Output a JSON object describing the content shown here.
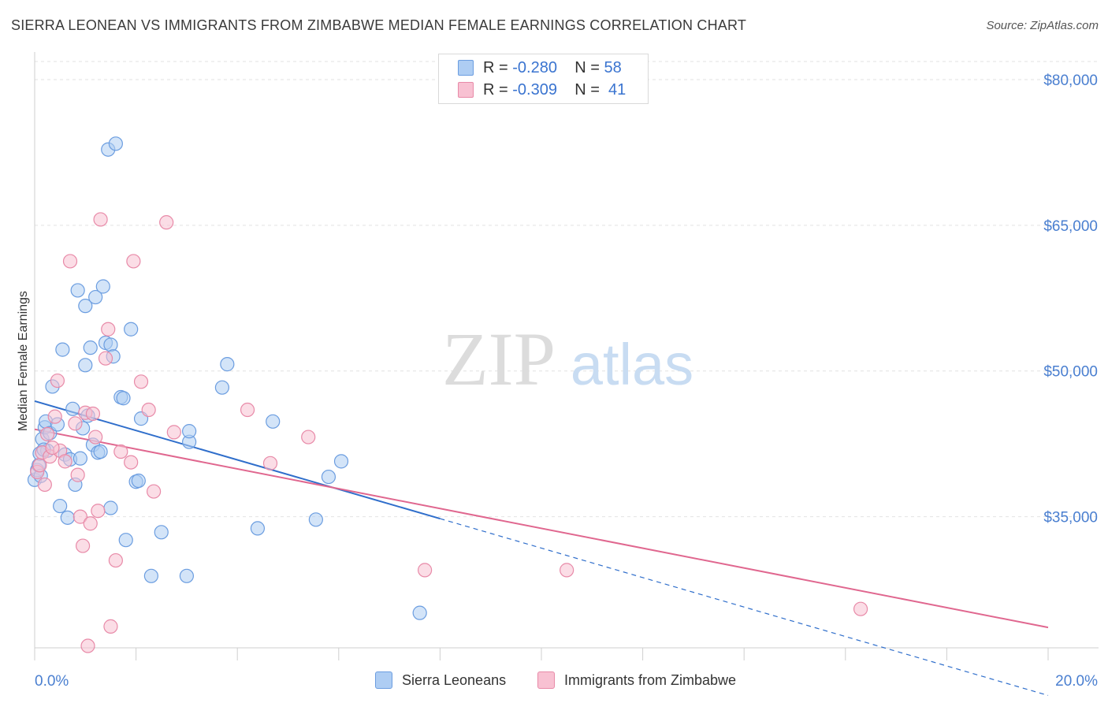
{
  "title": "SIERRA LEONEAN VS IMMIGRANTS FROM ZIMBABWE MEDIAN FEMALE EARNINGS CORRELATION CHART",
  "source": "Source: ZipAtlas.com",
  "watermark": {
    "zip": "ZIP",
    "atlas": "atlas"
  },
  "legend_top": {
    "rows": [
      {
        "r_label": "R =",
        "r_value": "-0.280",
        "n_label": "N =",
        "n_value": "58",
        "fill": "#aecdf3",
        "stroke": "#6b9de0"
      },
      {
        "r_label": "R =",
        "r_value": "-0.309",
        "n_label": "N =",
        "n_value": "41",
        "fill": "#f8c1d2",
        "stroke": "#e88aa8"
      }
    ]
  },
  "legend_bottom": [
    {
      "label": "Sierra Leoneans",
      "fill": "#aecdf3",
      "stroke": "#6b9de0"
    },
    {
      "label": "Immigrants from Zimbabwe",
      "fill": "#f8c1d2",
      "stroke": "#e88aa8"
    }
  ],
  "chart_data": {
    "type": "scatter",
    "title": "SIERRA LEONEAN VS IMMIGRANTS FROM ZIMBABWE MEDIAN FEMALE EARNINGS CORRELATION CHART",
    "xlabel": "",
    "ylabel": "Median Female Earnings",
    "xlim": [
      0,
      20
    ],
    "ylim": [
      21500,
      83000
    ],
    "x_tick_labels": [
      {
        "value": 0,
        "label": "0.0%"
      },
      {
        "value": 20,
        "label": "20.0%"
      }
    ],
    "y_tick_labels": [
      {
        "value": 80000,
        "label": "$80,000"
      },
      {
        "value": 65000,
        "label": "$65,000"
      },
      {
        "value": 50000,
        "label": "$50,000"
      },
      {
        "value": 35000,
        "label": "$35,000"
      }
    ],
    "grid": true,
    "series": [
      {
        "name": "Sierra Leoneans",
        "color": "#6b9de0",
        "fill": "#aecdf3",
        "trend": {
          "x0": 0,
          "y0": 46900,
          "x1": 8.0,
          "y1": 34800,
          "dash_to_x": 20.0,
          "dash_to_y": 16600,
          "color": "#2f6ecb"
        },
        "points": [
          [
            0.0,
            38800
          ],
          [
            0.05,
            39800
          ],
          [
            0.08,
            40300
          ],
          [
            0.1,
            41500
          ],
          [
            0.12,
            39200
          ],
          [
            0.15,
            43000
          ],
          [
            0.2,
            44200
          ],
          [
            0.22,
            44800
          ],
          [
            0.25,
            41800
          ],
          [
            0.3,
            43600
          ],
          [
            0.35,
            48400
          ],
          [
            0.45,
            44500
          ],
          [
            0.5,
            36100
          ],
          [
            0.55,
            52200
          ],
          [
            0.6,
            41400
          ],
          [
            0.65,
            34900
          ],
          [
            0.7,
            40900
          ],
          [
            0.75,
            46100
          ],
          [
            0.8,
            38300
          ],
          [
            0.85,
            58300
          ],
          [
            0.9,
            41000
          ],
          [
            0.95,
            44100
          ],
          [
            1.0,
            50600
          ],
          [
            1.0,
            56700
          ],
          [
            1.05,
            45400
          ],
          [
            1.1,
            52400
          ],
          [
            1.15,
            42400
          ],
          [
            1.2,
            57600
          ],
          [
            1.25,
            41600
          ],
          [
            1.3,
            41700
          ],
          [
            1.35,
            58700
          ],
          [
            1.4,
            52900
          ],
          [
            1.45,
            72800
          ],
          [
            1.5,
            52700
          ],
          [
            1.5,
            35900
          ],
          [
            1.55,
            51500
          ],
          [
            1.6,
            73400
          ],
          [
            1.7,
            47300
          ],
          [
            1.75,
            47200
          ],
          [
            1.8,
            32600
          ],
          [
            1.9,
            54300
          ],
          [
            2.0,
            38600
          ],
          [
            2.05,
            38700
          ],
          [
            2.1,
            45100
          ],
          [
            2.3,
            28900
          ],
          [
            2.5,
            33400
          ],
          [
            3.0,
            28900
          ],
          [
            3.05,
            42700
          ],
          [
            3.05,
            43800
          ],
          [
            3.7,
            48300
          ],
          [
            3.8,
            50700
          ],
          [
            4.4,
            33800
          ],
          [
            4.7,
            44800
          ],
          [
            5.55,
            34700
          ],
          [
            5.8,
            39100
          ],
          [
            6.05,
            40700
          ],
          [
            7.6,
            25100
          ],
          [
            0.18,
            41900
          ]
        ]
      },
      {
        "name": "Immigrants from Zimbabwe",
        "color": "#e88aa8",
        "fill": "#f8c1d2",
        "trend": {
          "x0": 0,
          "y0": 44000,
          "x1": 20.0,
          "y1": 23600,
          "color": "#e0678f"
        },
        "points": [
          [
            0.05,
            39600
          ],
          [
            0.1,
            40300
          ],
          [
            0.15,
            41600
          ],
          [
            0.2,
            38300
          ],
          [
            0.25,
            43500
          ],
          [
            0.3,
            41200
          ],
          [
            0.4,
            45300
          ],
          [
            0.45,
            49000
          ],
          [
            0.5,
            41800
          ],
          [
            0.6,
            40700
          ],
          [
            0.7,
            61300
          ],
          [
            0.8,
            44600
          ],
          [
            0.85,
            39300
          ],
          [
            0.9,
            35000
          ],
          [
            0.95,
            32000
          ],
          [
            1.0,
            45700
          ],
          [
            1.1,
            34300
          ],
          [
            1.2,
            43200
          ],
          [
            1.25,
            35600
          ],
          [
            1.3,
            65600
          ],
          [
            1.4,
            51300
          ],
          [
            1.45,
            54300
          ],
          [
            1.5,
            23700
          ],
          [
            1.6,
            30500
          ],
          [
            1.7,
            41700
          ],
          [
            1.9,
            40600
          ],
          [
            1.95,
            61300
          ],
          [
            2.1,
            48900
          ],
          [
            2.25,
            46000
          ],
          [
            2.35,
            37600
          ],
          [
            2.6,
            65300
          ],
          [
            2.75,
            43700
          ],
          [
            4.2,
            46000
          ],
          [
            4.65,
            40500
          ],
          [
            5.4,
            43200
          ],
          [
            7.7,
            29500
          ],
          [
            10.5,
            29500
          ],
          [
            16.3,
            25500
          ],
          [
            1.05,
            21700
          ],
          [
            0.35,
            42100
          ],
          [
            1.15,
            45600
          ]
        ]
      }
    ]
  }
}
